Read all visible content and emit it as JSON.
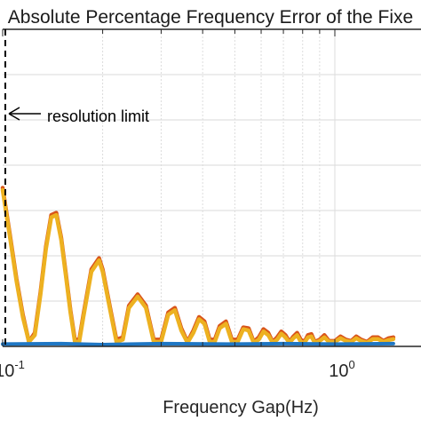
{
  "chart_data": {
    "type": "line",
    "title": "Absolute Percentage Frequency Error of the Fixe",
    "xlabel": "Frequency Gap(Hz)",
    "ylabel": "",
    "x_scale": "log",
    "xlim": [
      0.1,
      1.5
    ],
    "ylim": [
      0,
      7
    ],
    "grid": true,
    "x_tick_labels": [
      {
        "base": "10",
        "exp": "-1",
        "value": 0.1
      },
      {
        "base": "10",
        "exp": "0",
        "value": 1.0
      }
    ],
    "annotations": [
      {
        "text": "resolution limit",
        "x": 0.1,
        "style": "dashed-vertical-line-with-arrow"
      }
    ],
    "series": [
      {
        "color": "#d9541a",
        "points": [
          [
            0.1,
            3.5
          ],
          [
            0.105,
            2.5
          ],
          [
            0.11,
            1.5
          ],
          [
            0.115,
            0.7
          ],
          [
            0.12,
            0.1
          ],
          [
            0.125,
            0.3
          ],
          [
            0.13,
            1.2
          ],
          [
            0.135,
            2.2
          ],
          [
            0.14,
            2.9
          ],
          [
            0.145,
            2.95
          ],
          [
            0.15,
            2.4
          ],
          [
            0.155,
            1.6
          ],
          [
            0.16,
            0.8
          ],
          [
            0.165,
            0.15
          ],
          [
            0.17,
            0.15
          ],
          [
            0.175,
            0.7
          ],
          [
            0.185,
            1.7
          ],
          [
            0.195,
            1.95
          ],
          [
            0.2,
            1.7
          ],
          [
            0.21,
            0.9
          ],
          [
            0.22,
            0.15
          ],
          [
            0.23,
            0.2
          ],
          [
            0.24,
            0.9
          ],
          [
            0.255,
            1.15
          ],
          [
            0.27,
            0.9
          ],
          [
            0.285,
            0.15
          ],
          [
            0.3,
            0.15
          ],
          [
            0.315,
            0.75
          ],
          [
            0.33,
            0.85
          ],
          [
            0.345,
            0.4
          ],
          [
            0.36,
            0.1
          ],
          [
            0.375,
            0.35
          ],
          [
            0.39,
            0.65
          ],
          [
            0.405,
            0.55
          ],
          [
            0.42,
            0.15
          ],
          [
            0.435,
            0.15
          ],
          [
            0.45,
            0.45
          ],
          [
            0.47,
            0.55
          ],
          [
            0.49,
            0.15
          ],
          [
            0.51,
            0.15
          ],
          [
            0.53,
            0.42
          ],
          [
            0.55,
            0.4
          ],
          [
            0.57,
            0.1
          ],
          [
            0.59,
            0.2
          ],
          [
            0.61,
            0.38
          ],
          [
            0.63,
            0.3
          ],
          [
            0.65,
            0.1
          ],
          [
            0.67,
            0.2
          ],
          [
            0.69,
            0.33
          ],
          [
            0.71,
            0.25
          ],
          [
            0.73,
            0.1
          ],
          [
            0.75,
            0.22
          ],
          [
            0.77,
            0.3
          ],
          [
            0.79,
            0.15
          ],
          [
            0.81,
            0.1
          ],
          [
            0.83,
            0.25
          ],
          [
            0.85,
            0.27
          ],
          [
            0.87,
            0.1
          ],
          [
            0.9,
            0.15
          ],
          [
            0.93,
            0.25
          ],
          [
            0.96,
            0.12
          ],
          [
            1.0,
            0.12
          ],
          [
            1.04,
            0.22
          ],
          [
            1.08,
            0.15
          ],
          [
            1.12,
            0.12
          ],
          [
            1.16,
            0.22
          ],
          [
            1.2,
            0.15
          ],
          [
            1.25,
            0.1
          ],
          [
            1.3,
            0.2
          ],
          [
            1.35,
            0.2
          ],
          [
            1.4,
            0.12
          ],
          [
            1.45,
            0.18
          ],
          [
            1.5,
            0.2
          ]
        ]
      },
      {
        "color": "#edb120",
        "points": [
          [
            0.1,
            3.45
          ],
          [
            0.105,
            2.45
          ],
          [
            0.11,
            1.45
          ],
          [
            0.115,
            0.65
          ],
          [
            0.12,
            0.1
          ],
          [
            0.125,
            0.25
          ],
          [
            0.13,
            1.15
          ],
          [
            0.135,
            2.15
          ],
          [
            0.14,
            2.85
          ],
          [
            0.145,
            2.9
          ],
          [
            0.15,
            2.35
          ],
          [
            0.155,
            1.55
          ],
          [
            0.16,
            0.75
          ],
          [
            0.165,
            0.1
          ],
          [
            0.17,
            0.1
          ],
          [
            0.175,
            0.65
          ],
          [
            0.185,
            1.65
          ],
          [
            0.195,
            1.9
          ],
          [
            0.2,
            1.65
          ],
          [
            0.21,
            0.85
          ],
          [
            0.22,
            0.1
          ],
          [
            0.23,
            0.15
          ],
          [
            0.24,
            0.85
          ],
          [
            0.255,
            1.1
          ],
          [
            0.27,
            0.85
          ],
          [
            0.285,
            0.1
          ],
          [
            0.3,
            0.1
          ],
          [
            0.315,
            0.7
          ],
          [
            0.33,
            0.8
          ],
          [
            0.345,
            0.35
          ],
          [
            0.36,
            0.08
          ],
          [
            0.375,
            0.3
          ],
          [
            0.39,
            0.6
          ],
          [
            0.405,
            0.5
          ],
          [
            0.42,
            0.1
          ],
          [
            0.435,
            0.1
          ],
          [
            0.45,
            0.4
          ],
          [
            0.47,
            0.5
          ],
          [
            0.49,
            0.1
          ],
          [
            0.51,
            0.1
          ],
          [
            0.53,
            0.38
          ],
          [
            0.55,
            0.35
          ],
          [
            0.57,
            0.08
          ],
          [
            0.59,
            0.15
          ],
          [
            0.61,
            0.33
          ],
          [
            0.63,
            0.25
          ],
          [
            0.65,
            0.08
          ],
          [
            0.67,
            0.15
          ],
          [
            0.69,
            0.28
          ],
          [
            0.71,
            0.2
          ],
          [
            0.73,
            0.08
          ],
          [
            0.75,
            0.18
          ],
          [
            0.77,
            0.25
          ],
          [
            0.79,
            0.1
          ],
          [
            0.81,
            0.08
          ],
          [
            0.83,
            0.2
          ],
          [
            0.85,
            0.22
          ],
          [
            0.87,
            0.08
          ],
          [
            0.9,
            0.12
          ],
          [
            0.93,
            0.2
          ],
          [
            0.96,
            0.1
          ],
          [
            1.0,
            0.1
          ],
          [
            1.04,
            0.18
          ],
          [
            1.08,
            0.12
          ],
          [
            1.12,
            0.1
          ],
          [
            1.16,
            0.18
          ],
          [
            1.2,
            0.12
          ],
          [
            1.25,
            0.08
          ],
          [
            1.3,
            0.16
          ],
          [
            1.35,
            0.16
          ],
          [
            1.4,
            0.1
          ],
          [
            1.45,
            0.14
          ],
          [
            1.5,
            0.16
          ]
        ]
      },
      {
        "color": "#1f77c4",
        "points": [
          [
            0.1,
            0.05
          ],
          [
            0.15,
            0.06
          ],
          [
            0.2,
            0.04
          ],
          [
            0.3,
            0.06
          ],
          [
            0.5,
            0.05
          ],
          [
            0.7,
            0.06
          ],
          [
            1.0,
            0.05
          ],
          [
            1.5,
            0.06
          ]
        ]
      }
    ]
  }
}
